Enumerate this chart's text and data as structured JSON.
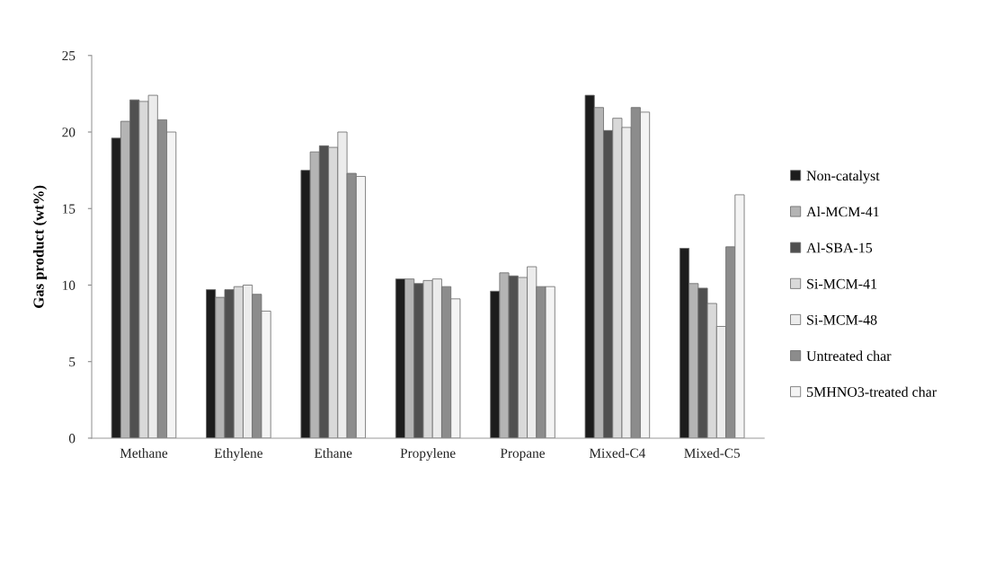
{
  "chart_data": {
    "type": "bar",
    "ylabel": "Gas product (wt%)",
    "categories": [
      "Methane",
      "Ethylene",
      "Ethane",
      "Propylene",
      "Propane",
      "Mixed-C4",
      "Mixed-C5"
    ],
    "series": [
      {
        "name": "Non-catalyst",
        "color": "#1c1c1c",
        "values": [
          19.6,
          9.7,
          17.5,
          10.4,
          9.6,
          22.4,
          12.4
        ]
      },
      {
        "name": "Al-MCM-41",
        "color": "#b4b4b4",
        "values": [
          20.7,
          9.2,
          18.7,
          10.4,
          10.8,
          21.6,
          10.1
        ]
      },
      {
        "name": "Al-SBA-15",
        "color": "#505050",
        "values": [
          22.1,
          9.7,
          19.1,
          10.1,
          10.6,
          20.1,
          9.8
        ]
      },
      {
        "name": "Si-MCM-41",
        "color": "#d9d9d9",
        "values": [
          22.0,
          9.9,
          19.0,
          10.3,
          10.5,
          20.9,
          8.8
        ]
      },
      {
        "name": "Si-MCM-48",
        "color": "#ececec",
        "values": [
          22.4,
          10.0,
          20.0,
          10.4,
          11.2,
          20.3,
          7.3
        ]
      },
      {
        "name": "Untreated char",
        "color": "#8c8c8c",
        "values": [
          20.8,
          9.4,
          17.3,
          9.9,
          9.9,
          21.6,
          12.5
        ]
      },
      {
        "name": "5MHNO3-treated char",
        "color": "#f4f4f4",
        "values": [
          20.0,
          8.3,
          17.1,
          9.1,
          9.9,
          21.3,
          15.9
        ]
      }
    ],
    "ylim": [
      0,
      25
    ],
    "yticks": [
      0,
      5,
      10,
      15,
      20,
      25
    ],
    "legend": "right"
  }
}
